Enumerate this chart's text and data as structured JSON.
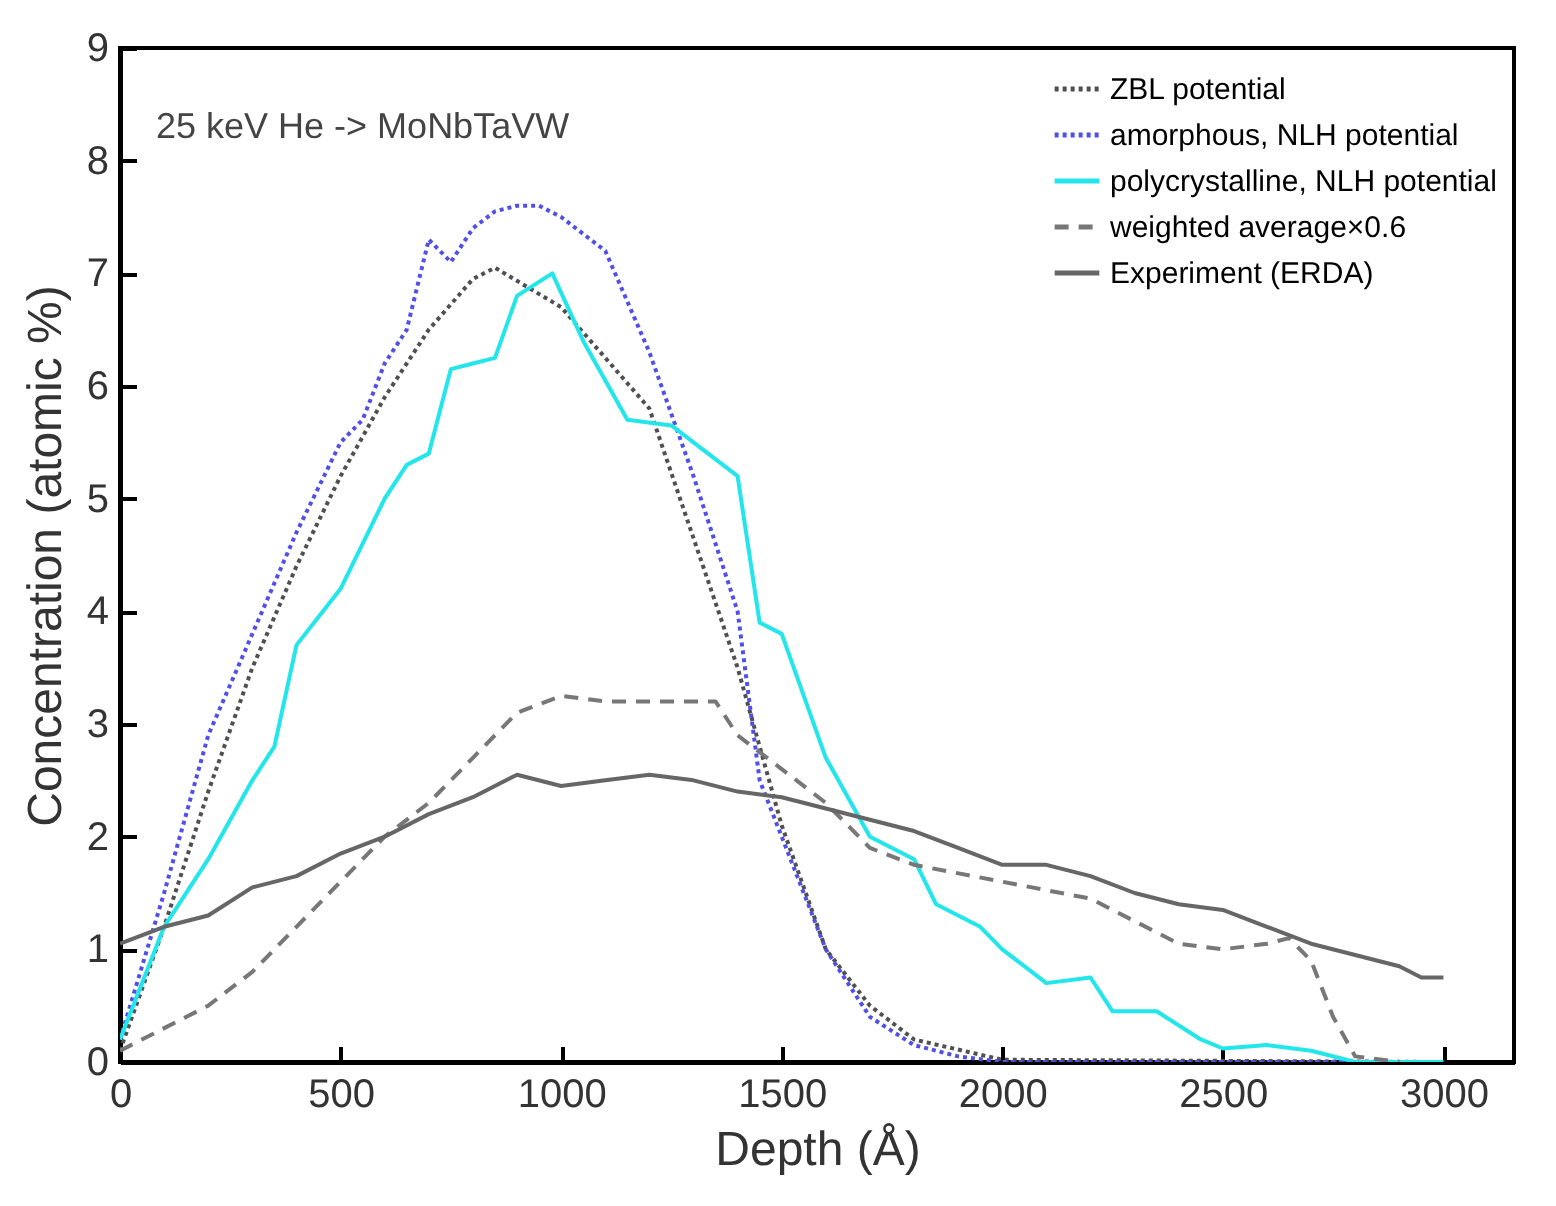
{
  "chart_data": {
    "type": "line",
    "xlabel": "Depth (Å)",
    "ylabel": "Concentration (atomic %)",
    "annotations": [
      "25 keV He -> MoNbTaVW"
    ],
    "xlim": [
      0,
      3160
    ],
    "xticks": [
      0,
      500,
      1000,
      1500,
      2000,
      2500,
      3000
    ],
    "ylim": [
      0,
      9
    ],
    "yticks": [
      0,
      1,
      2,
      3,
      4,
      5,
      6,
      7,
      8,
      9
    ],
    "legend": "top right",
    "grid": false,
    "series": [
      {
        "name": "ZBL potential",
        "color": "#505050",
        "line_style": "dotted",
        "x": [
          0,
          100,
          200,
          300,
          400,
          500,
          600,
          700,
          800,
          850,
          1000,
          1200,
          1400,
          1500,
          1600,
          1700,
          1800,
          2000,
          3000
        ],
        "values": [
          0.1,
          1.2,
          2.4,
          3.5,
          4.4,
          5.2,
          5.9,
          6.5,
          6.95,
          7.05,
          6.7,
          5.8,
          3.5,
          2.1,
          1.0,
          0.5,
          0.2,
          0.02,
          0
        ]
      },
      {
        "name": "amorphous, NLH potential",
        "color": "#5050e8",
        "line_style": "dotted",
        "x": [
          0,
          100,
          200,
          300,
          400,
          500,
          550,
          600,
          650,
          700,
          750,
          800,
          850,
          900,
          950,
          1000,
          1100,
          1200,
          1300,
          1400,
          1450,
          1500,
          1600,
          1700,
          1800,
          1900,
          2000,
          3000
        ],
        "values": [
          0.2,
          1.5,
          2.9,
          3.8,
          4.7,
          5.5,
          5.7,
          6.2,
          6.5,
          7.3,
          7.1,
          7.4,
          7.55,
          7.6,
          7.6,
          7.5,
          7.2,
          6.3,
          5.2,
          4.0,
          2.5,
          2.0,
          1.0,
          0.4,
          0.15,
          0.05,
          0,
          0
        ]
      },
      {
        "name": "polycrystalline, NLH potential",
        "color": "#22e6ea",
        "line_style": "solid",
        "x": [
          0,
          100,
          200,
          300,
          350,
          400,
          500,
          600,
          650,
          700,
          750,
          800,
          850,
          900,
          980,
          1050,
          1150,
          1250,
          1300,
          1400,
          1450,
          1500,
          1600,
          1700,
          1750,
          1800,
          1850,
          1950,
          2000,
          2100,
          2200,
          2250,
          2350,
          2450,
          2500,
          2600,
          2700,
          2800,
          3000
        ],
        "values": [
          0.2,
          1.2,
          1.8,
          2.5,
          2.8,
          3.7,
          4.2,
          5.0,
          5.3,
          5.4,
          6.15,
          6.2,
          6.25,
          6.8,
          7.0,
          6.4,
          5.7,
          5.65,
          5.5,
          5.2,
          3.9,
          3.8,
          2.7,
          2.0,
          1.9,
          1.8,
          1.4,
          1.2,
          1.0,
          0.7,
          0.75,
          0.45,
          0.45,
          0.2,
          0.12,
          0.15,
          0.1,
          0,
          0
        ]
      },
      {
        "name": "weighted average×0.6",
        "color": "#777777",
        "line_style": "dashed",
        "x": [
          0,
          200,
          300,
          400,
          500,
          600,
          700,
          800,
          900,
          1000,
          1100,
          1200,
          1300,
          1350,
          1400,
          1500,
          1600,
          1700,
          1800,
          2000,
          2200,
          2300,
          2400,
          2500,
          2600,
          2650,
          2700,
          2750,
          2800,
          2900
        ],
        "values": [
          0.1,
          0.5,
          0.8,
          1.2,
          1.6,
          2.0,
          2.3,
          2.7,
          3.1,
          3.25,
          3.2,
          3.2,
          3.2,
          3.2,
          2.9,
          2.6,
          2.3,
          1.9,
          1.75,
          1.6,
          1.45,
          1.25,
          1.05,
          1.0,
          1.05,
          1.1,
          0.9,
          0.4,
          0.05,
          0
        ]
      },
      {
        "name": "Experiment (ERDA)",
        "color": "#666666",
        "line_style": "solid",
        "x": [
          0,
          100,
          200,
          300,
          400,
          500,
          600,
          700,
          800,
          900,
          1000,
          1100,
          1200,
          1300,
          1400,
          1500,
          1600,
          1700,
          1800,
          1900,
          2000,
          2100,
          2200,
          2300,
          2400,
          2500,
          2600,
          2700,
          2800,
          2900,
          2950,
          3000
        ],
        "values": [
          1.05,
          1.2,
          1.3,
          1.55,
          1.65,
          1.85,
          2.0,
          2.2,
          2.35,
          2.55,
          2.45,
          2.5,
          2.55,
          2.5,
          2.4,
          2.35,
          2.25,
          2.15,
          2.05,
          1.9,
          1.75,
          1.75,
          1.65,
          1.5,
          1.4,
          1.35,
          1.2,
          1.05,
          0.95,
          0.85,
          0.75,
          0.75
        ]
      }
    ]
  }
}
